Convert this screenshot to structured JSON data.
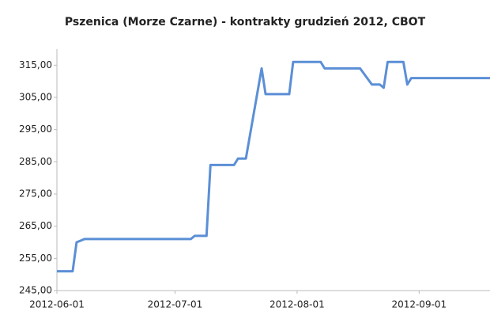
{
  "chart_data": {
    "type": "line",
    "title": "Pszenica (Morze Czarne) - kontrakty grudzień 2012, CBOT",
    "x": [
      "2012-06-01",
      "2012-06-05",
      "2012-06-06",
      "2012-06-07",
      "2012-06-08",
      "2012-07-05",
      "2012-07-06",
      "2012-07-09",
      "2012-07-10",
      "2012-07-16",
      "2012-07-17",
      "2012-07-19",
      "2012-07-20",
      "2012-07-23",
      "2012-07-24",
      "2012-07-30",
      "2012-07-31",
      "2012-08-07",
      "2012-08-08",
      "2012-08-17",
      "2012-08-20",
      "2012-08-22",
      "2012-08-23",
      "2012-08-24",
      "2012-08-28",
      "2012-08-29",
      "2012-08-30",
      "2012-09-19"
    ],
    "series": [
      {
        "name": "Pszenica",
        "color": "#5b8fd6",
        "values": [
          251,
          251,
          260,
          260.5,
          261,
          261,
          262,
          262,
          284,
          284,
          286,
          286,
          293,
          314,
          306,
          306,
          316,
          316,
          314,
          314,
          309,
          309,
          308,
          316,
          316,
          309,
          311,
          311
        ]
      }
    ],
    "xlim": [
      "2012-06-01",
      "2012-09-19"
    ],
    "xticks": [
      "2012-06-01",
      "2012-07-01",
      "2012-08-01",
      "2012-09-01"
    ],
    "ylim": [
      245,
      320
    ],
    "yticks": [
      {
        "value": 245,
        "label": "245,00"
      },
      {
        "value": 255,
        "label": "255,00"
      },
      {
        "value": 265,
        "label": "265,00"
      },
      {
        "value": 275,
        "label": "275,00"
      },
      {
        "value": 285,
        "label": "285,00"
      },
      {
        "value": 295,
        "label": "295,00"
      },
      {
        "value": 305,
        "label": "305,00"
      },
      {
        "value": 315,
        "label": "315,00"
      }
    ]
  }
}
